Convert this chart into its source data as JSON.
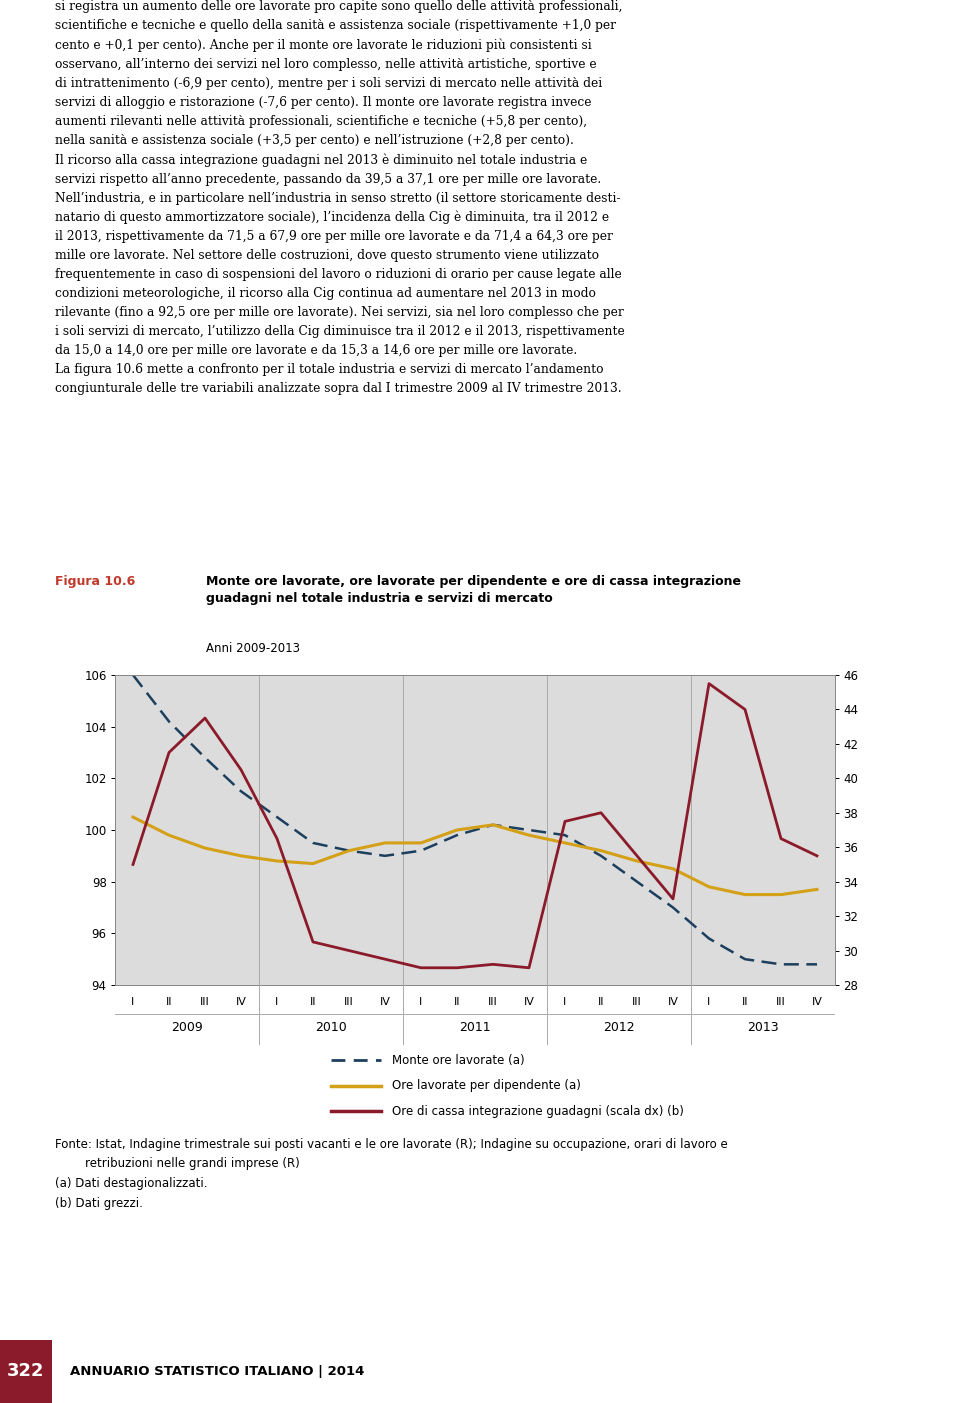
{
  "fig_label": "Figura 10.6",
  "title_bold": "Monte ore lavorate, ore lavorate per dipendente e ore di cassa integrazione\nguadagni nel totale industria e servizi di mercato",
  "title_sub": "Anni 2009-2013",
  "x_roman": [
    "I",
    "II",
    "III",
    "IV",
    "I",
    "II",
    "III",
    "IV",
    "I",
    "II",
    "III",
    "IV",
    "I",
    "II",
    "III",
    "IV",
    "I",
    "II",
    "III",
    "IV"
  ],
  "x_years": [
    "2009",
    "2010",
    "2011",
    "2012",
    "2013"
  ],
  "year_centers": [
    1.5,
    5.5,
    9.5,
    13.5,
    17.5
  ],
  "ylim_left": [
    94,
    106
  ],
  "ylim_right": [
    28,
    46
  ],
  "yticks_left": [
    94,
    96,
    98,
    100,
    102,
    104,
    106
  ],
  "yticks_right": [
    28,
    30,
    32,
    34,
    36,
    38,
    40,
    42,
    44,
    46
  ],
  "monte_ore": [
    106.0,
    104.2,
    102.8,
    101.5,
    100.5,
    99.5,
    99.2,
    99.0,
    99.2,
    99.8,
    100.2,
    100.0,
    99.8,
    99.0,
    98.0,
    97.0,
    95.8,
    95.0,
    94.8,
    94.8
  ],
  "ore_dip": [
    100.5,
    99.8,
    99.3,
    99.0,
    98.8,
    98.7,
    99.2,
    99.5,
    99.5,
    100.0,
    100.2,
    99.8,
    99.5,
    99.2,
    98.8,
    98.5,
    97.8,
    97.5,
    97.5,
    97.7
  ],
  "ore_cig": [
    35.0,
    41.5,
    43.5,
    40.5,
    36.5,
    30.5,
    30.0,
    29.5,
    29.0,
    29.0,
    29.2,
    29.0,
    37.5,
    38.0,
    35.5,
    33.0,
    45.5,
    44.0,
    36.5,
    35.5
  ],
  "color_monte": "#1c3f5e",
  "color_dip": "#d4a017",
  "color_cig": "#8b1a2a",
  "bg_chart": "#dcdcdc",
  "year_sep_color": "#aaaaaa",
  "legend_monte": "Monte ore lavorate (a)",
  "legend_dip": "Ore lavorate per dipendente (a)",
  "legend_cig": "Ore di cassa integrazione guadagni (scala dx) (b)",
  "fonte": "Fonte: Istat, Indagine trimestrale sui posti vacanti e le ore lavorate (R); Indagine su occupazione, orari di lavoro e\n        retribuzioni nelle grandi imprese (R)\n(a) Dati destagionalizzati.\n(b) Dati grezzi.",
  "page_num": "322",
  "page_footer": "ANNUARIO STATISTICO ITALIANO | 2014",
  "body_text": "si registra un aumento delle ore lavorate pro capite sono quello delle attività professionali,\nscientifiche e tecniche e quello della sanità e assistenza sociale (rispettivamente +1,0 per\ncento e +0,1 per cento). Anche per il monte ore lavorate le riduzioni più consistenti si\nosservano, all’interno dei servizi nel loro complesso, nelle attività artistiche, sportive e\ndi intrattenimento (-6,9 per cento), mentre per i soli servizi di mercato nelle attività dei\nservizi di alloggio e ristorazione (-7,6 per cento). Il monte ore lavorate registra invece\naumenti rilevanti nelle attività professionali, scientifiche e tecniche (+5,8 per cento),\nnella sanità e assistenza sociale (+3,5 per cento) e nell’istruzione (+2,8 per cento).\nIl ricorso alla cassa integrazione guadagni nel 2013 è diminuito nel totale industria e\nservizi rispetto all’anno precedente, passando da 39,5 a 37,1 ore per mille ore lavorate.\nNell’industria, e in particolare nell’industria in senso stretto (il settore storicamente desti-\nnatario di questo ammortizzatore sociale), l’incidenza della Cig è diminuita, tra il 2012 e\nil 2013, rispettivamente da 71,5 a 67,9 ore per mille ore lavorate e da 71,4 a 64,3 ore per\nmille ore lavorate. Nel settore delle costruzioni, dove questo strumento viene utilizzato\nfrequentemente in caso di sospensioni del lavoro o riduzioni di orario per cause legate alle\ncondizioni meteorologiche, il ricorso alla Cig continua ad aumentare nel 2013 in modo\nrilevante (fino a 92,5 ore per mille ore lavorate). Nei servizi, sia nel loro complesso che per\ni soli servizi di mercato, l’utilizzo della Cig diminuisce tra il 2012 e il 2013, rispettivamente\nda 15,0 a 14,0 ore per mille ore lavorate e da 15,3 a 14,6 ore per mille ore lavorate.\nLa figura 10.6 mette a confronto per il totale industria e servizi di mercato l’andamento\ncongiunturale delle tre variabili analizzate sopra dal I trimestre 2009 al IV trimestre 2013."
}
